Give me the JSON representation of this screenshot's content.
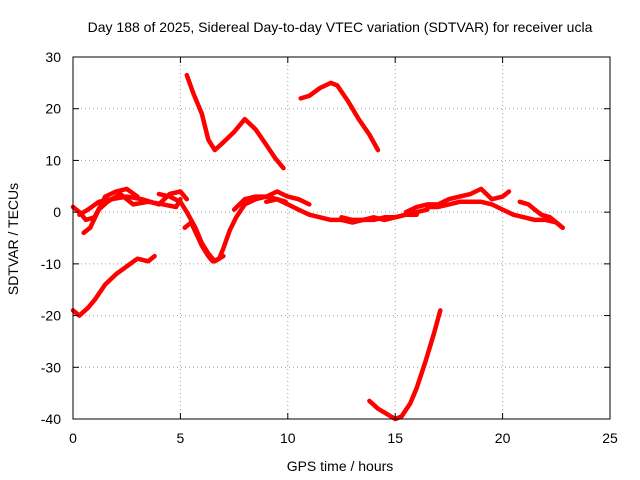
{
  "chart_data": {
    "type": "line",
    "title": "Day 188 of 2025, Sidereal Day-to-day VTEC variation (SDTVAR) for receiver ucla",
    "xlabel": "GPS time / hours",
    "ylabel": "SDTVAR / TECUs",
    "xlim": [
      0,
      25
    ],
    "ylim": [
      -40,
      30
    ],
    "xticks": [
      0,
      5,
      10,
      15,
      20,
      25
    ],
    "yticks": [
      -40,
      -30,
      -20,
      -10,
      0,
      10,
      20,
      30
    ],
    "grid": true,
    "legend": "none",
    "series_color": "#ff0000",
    "series": [
      {
        "name": "track-1",
        "x": [
          0.0,
          0.3,
          0.7,
          1.0,
          1.5,
          2.0,
          2.5,
          3.0,
          3.5,
          3.8
        ],
        "y": [
          -19.0,
          -20.0,
          -18.5,
          -17.0,
          -14.0,
          -12.0,
          -10.5,
          -9.0,
          -9.5,
          -8.5
        ]
      },
      {
        "name": "track-2",
        "x": [
          0.0,
          0.3,
          0.6,
          1.0,
          1.5,
          2.0,
          2.5,
          3.0
        ],
        "y": [
          1.0,
          0.0,
          -1.5,
          -1.0,
          3.0,
          4.0,
          4.5,
          3.0
        ]
      },
      {
        "name": "track-3",
        "x": [
          0.5,
          0.8,
          1.2,
          1.6,
          2.2,
          2.8,
          3.5,
          4.2,
          4.8,
          5.0
        ],
        "y": [
          -4.0,
          -3.0,
          0.5,
          2.0,
          3.5,
          1.5,
          2.0,
          1.5,
          1.0,
          2.5
        ]
      },
      {
        "name": "track-4",
        "x": [
          0.3,
          0.7,
          1.2,
          1.8,
          2.5,
          3.2,
          4.0,
          4.5,
          5.0,
          5.3
        ],
        "y": [
          -0.5,
          0.5,
          2.0,
          2.5,
          3.0,
          2.5,
          1.5,
          3.5,
          4.0,
          2.5
        ]
      },
      {
        "name": "track-5",
        "x": [
          5.2,
          5.5,
          6.0,
          6.3,
          6.5,
          6.8,
          7.0,
          7.3,
          7.6,
          8.0,
          8.5,
          9.0,
          9.5,
          9.9
        ],
        "y": [
          -3.0,
          -2.0,
          -6.5,
          -8.5,
          -9.5,
          -9.0,
          -7.0,
          -3.5,
          -1.0,
          1.5,
          2.5,
          3.0,
          2.5,
          2.0
        ]
      },
      {
        "name": "track-6",
        "x": [
          4.0,
          4.5,
          5.0,
          5.3,
          5.7,
          6.0,
          6.3,
          6.6,
          7.0
        ],
        "y": [
          3.5,
          3.0,
          2.0,
          0.0,
          -3.0,
          -6.0,
          -8.0,
          -9.5,
          -8.5
        ]
      },
      {
        "name": "track-7",
        "x": [
          7.5,
          8.0,
          8.5,
          9.0,
          9.5,
          10.0,
          10.5,
          11.0
        ],
        "y": [
          0.5,
          2.5,
          3.0,
          3.0,
          4.0,
          3.0,
          2.5,
          1.5
        ]
      },
      {
        "name": "track-8",
        "x": [
          9.0,
          9.5,
          10.0,
          10.5,
          11.0,
          11.5,
          12.0,
          12.5,
          13.0,
          13.5,
          14.0,
          14.5,
          15.0,
          15.5,
          16.0,
          16.5
        ],
        "y": [
          2.0,
          2.5,
          1.5,
          0.5,
          -0.5,
          -1.0,
          -1.5,
          -1.5,
          -2.0,
          -1.5,
          -1.0,
          -1.5,
          -1.0,
          -0.5,
          0.0,
          0.5
        ]
      },
      {
        "name": "track-9",
        "x": [
          12.5,
          13.0,
          13.5,
          14.0,
          14.5,
          15.0,
          15.5,
          16.0
        ],
        "y": [
          -1.0,
          -1.5,
          -1.5,
          -1.5,
          -1.0,
          -1.0,
          -0.5,
          -0.5
        ]
      },
      {
        "name": "track-10",
        "x": [
          15.5,
          16.0,
          16.5,
          17.0,
          17.5,
          18.0,
          18.5,
          19.0,
          19.5,
          20.0,
          20.3
        ],
        "y": [
          0.0,
          1.0,
          1.5,
          1.5,
          2.5,
          3.0,
          3.5,
          4.5,
          2.5,
          3.0,
          4.0
        ]
      },
      {
        "name": "track-11",
        "x": [
          16.5,
          17.0,
          17.5,
          18.0,
          18.5,
          19.0,
          19.5,
          20.0,
          20.5,
          21.0,
          21.5,
          22.0,
          22.5,
          22.8
        ],
        "y": [
          1.0,
          1.0,
          1.5,
          2.0,
          2.0,
          2.0,
          1.5,
          0.5,
          -0.5,
          -1.0,
          -1.5,
          -1.5,
          -2.0,
          -3.0
        ]
      },
      {
        "name": "track-12",
        "x": [
          20.8,
          21.2,
          21.5,
          21.8,
          22.2,
          22.5,
          22.8
        ],
        "y": [
          2.0,
          1.5,
          0.5,
          -0.5,
          -1.0,
          -2.0,
          -3.0
        ]
      },
      {
        "name": "track-13",
        "x": [
          5.3,
          5.6,
          6.0,
          6.3,
          6.6,
          7.0,
          7.5,
          8.0,
          8.5,
          9.0,
          9.4,
          9.8
        ],
        "y": [
          26.5,
          23.0,
          19.0,
          14.0,
          12.0,
          13.5,
          15.5,
          18.0,
          16.0,
          13.0,
          10.5,
          8.5
        ]
      },
      {
        "name": "track-14",
        "x": [
          10.6,
          11.0,
          11.5,
          12.0,
          12.3,
          12.8,
          13.3,
          13.8,
          14.2
        ],
        "y": [
          22.0,
          22.5,
          24.0,
          25.0,
          24.5,
          21.5,
          18.0,
          15.0,
          12.0
        ]
      },
      {
        "name": "track-15",
        "x": [
          13.8,
          14.2,
          14.6,
          15.0,
          15.3,
          15.7,
          16.0,
          16.4,
          16.8,
          17.1
        ],
        "y": [
          -36.5,
          -38.0,
          -39.0,
          -40.0,
          -39.5,
          -37.0,
          -34.0,
          -29.0,
          -23.5,
          -19.0
        ]
      }
    ]
  }
}
